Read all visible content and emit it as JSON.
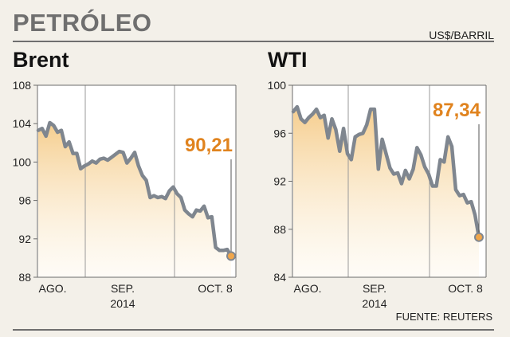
{
  "header": {
    "title": "PETRÓLEO",
    "unit": "US$/BARRIL"
  },
  "source": "FUENTE: REUTERS",
  "accent_color": "#e0831e",
  "line_color": "#7f868f",
  "chart_data": [
    {
      "type": "area",
      "title": "Brent",
      "callout": "90,21",
      "ylim": [
        88,
        108
      ],
      "yticks": [
        88,
        92,
        96,
        100,
        104,
        108
      ],
      "x_month_labels": [
        "AGO.",
        "SEP.",
        "OCT. 8"
      ],
      "x_year_label": "2014",
      "grid": "vertical month separators",
      "values": [
        103.3,
        103.5,
        102.7,
        104.1,
        103.8,
        103.1,
        103.3,
        101.6,
        102.1,
        100.9,
        100.9,
        99.3,
        99.6,
        99.8,
        100.1,
        99.9,
        100.3,
        100.4,
        100.2,
        100.5,
        100.8,
        101.1,
        101.0,
        99.9,
        100.4,
        101.0,
        99.6,
        98.6,
        98.1,
        96.3,
        96.5,
        96.3,
        96.4,
        96.2,
        97.0,
        97.4,
        96.7,
        96.3,
        95.0,
        94.6,
        94.3,
        95.0,
        94.9,
        95.4,
        94.2,
        94.3,
        91.1,
        90.8,
        90.8,
        90.9,
        90.21
      ]
    },
    {
      "type": "area",
      "title": "WTI",
      "callout": "87,34",
      "ylim": [
        84,
        100
      ],
      "yticks": [
        84,
        88,
        92,
        96,
        100
      ],
      "x_month_labels": [
        "AGO.",
        "SEP.",
        "OCT. 8"
      ],
      "x_year_label": "2014",
      "grid": "vertical month separators",
      "values": [
        97.8,
        98.2,
        97.2,
        96.9,
        97.3,
        97.6,
        98.0,
        97.3,
        97.5,
        95.6,
        97.2,
        96.3,
        94.5,
        96.4,
        94.3,
        93.8,
        95.7,
        95.9,
        96.0,
        96.7,
        98.0,
        98.0,
        93.0,
        95.5,
        94.3,
        93.1,
        92.6,
        92.7,
        91.8,
        92.9,
        92.2,
        93.0,
        94.8,
        94.2,
        93.2,
        92.6,
        91.6,
        91.6,
        93.8,
        93.6,
        95.7,
        94.9,
        91.3,
        90.8,
        90.9,
        90.2,
        90.3,
        89.2,
        87.34
      ]
    }
  ]
}
